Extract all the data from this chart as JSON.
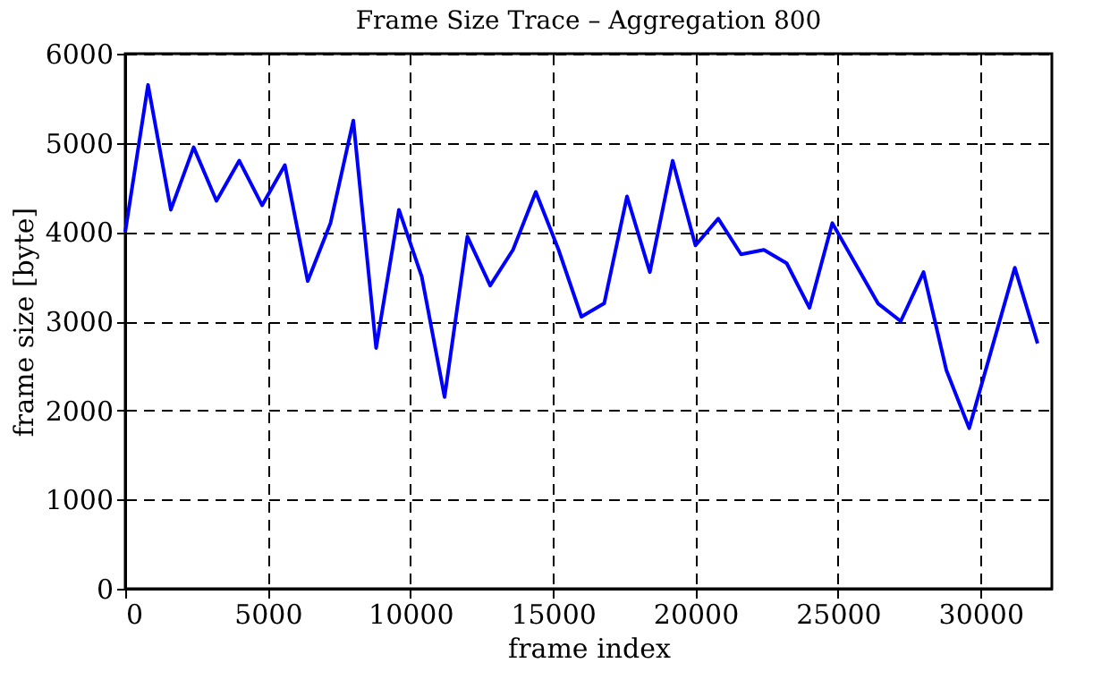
{
  "chart_data": {
    "type": "line",
    "title": "Frame Size Trace – Aggregation 800",
    "xlabel": "frame index",
    "ylabel": "frame size [byte]",
    "x": [
      0,
      800,
      1600,
      2400,
      3200,
      4000,
      4800,
      5600,
      6400,
      7200,
      8000,
      8800,
      9600,
      10400,
      11200,
      12000,
      12800,
      13600,
      14400,
      15200,
      16000,
      16800,
      17600,
      18400,
      19200,
      20000,
      20800,
      21600,
      22400,
      23200,
      24000,
      24800,
      25600,
      26400,
      27200,
      28000,
      28800,
      29600,
      30400,
      31200,
      32000
    ],
    "series": [
      {
        "color": "#0000ff",
        "values": [
          4000,
          5650,
          4250,
          4950,
          4350,
          4800,
          4300,
          4750,
          3450,
          4100,
          5250,
          2700,
          4250,
          3500,
          2150,
          3950,
          3400,
          3800,
          4450,
          3800,
          3050,
          3200,
          4400,
          3550,
          4800,
          3850,
          4150,
          3750,
          3800,
          3650,
          3150,
          4100,
          3650,
          3200,
          3000,
          3550,
          2450,
          1800,
          2700,
          3600,
          2750
        ]
      }
    ],
    "xlim": [
      0,
      32500
    ],
    "xticks": [
      0,
      5000,
      10000,
      15000,
      20000,
      25000,
      30000
    ],
    "ylim": [
      0,
      6000
    ],
    "yticks": [
      0,
      1000,
      2000,
      3000,
      4000,
      5000,
      6000
    ],
    "grid": true,
    "line_style": "solid",
    "marker": "none"
  }
}
